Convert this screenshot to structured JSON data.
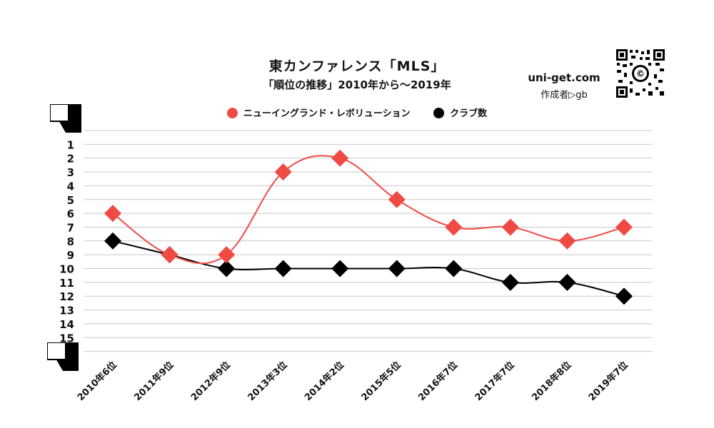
{
  "chart_data": {
    "type": "line",
    "title": "東カンファレンス「MLS」",
    "subtitle": "「順位の推移」2010年から〜2019年",
    "categories": [
      "2010年6位",
      "2011年9位",
      "2012年9位",
      "2013年3位",
      "2014年2位",
      "2015年5位",
      "2016年7位",
      "2017年7位",
      "2018年8位",
      "2019年7位"
    ],
    "series": [
      {
        "name": "ニューイングランド・レボリューション",
        "color": "#f04a45",
        "values": [
          6,
          9,
          9,
          3,
          2,
          5,
          7,
          7,
          8,
          7
        ]
      },
      {
        "name": "クラブ数",
        "color": "#000000",
        "values": [
          8,
          9,
          10,
          10,
          10,
          10,
          10,
          11,
          11,
          12
        ]
      }
    ],
    "y_ticks": [
      "1",
      "2",
      "3",
      "4",
      "5",
      "6",
      "7",
      "8",
      "9",
      "10",
      "11",
      "12",
      "13",
      "14",
      "15"
    ],
    "ylim": [
      0,
      16
    ],
    "y_inverted": true,
    "grid": true,
    "legend_position": "top",
    "marker": "diamond"
  },
  "site": "uni-get.com",
  "author": "作成者▷gb",
  "qr_logo": "©"
}
